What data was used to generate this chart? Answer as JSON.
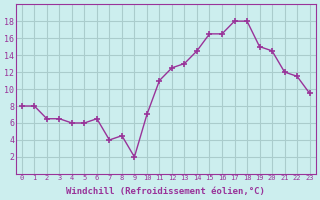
{
  "x": [
    0,
    1,
    2,
    3,
    4,
    5,
    6,
    7,
    8,
    9,
    10,
    11,
    12,
    13,
    14,
    15,
    16,
    17,
    18,
    19,
    20,
    21,
    22,
    23
  ],
  "y": [
    8,
    8,
    6.5,
    6.5,
    6,
    6,
    6.5,
    4,
    4.5,
    2,
    7,
    11,
    12.5,
    13,
    14.5,
    16.5,
    16.5,
    18,
    18,
    15,
    14.5,
    12,
    11.5,
    9.5
  ],
  "line_color": "#993399",
  "marker_color": "#993399",
  "bg_color": "#cceeee",
  "grid_color": "#aacccc",
  "xlabel": "Windchill (Refroidissement éolien,°C)",
  "xlabel_color": "#993399",
  "tick_color": "#993399",
  "ylim": [
    0,
    20
  ],
  "xlim_min": -0.5,
  "xlim_max": 23.5,
  "yticks": [
    2,
    4,
    6,
    8,
    10,
    12,
    14,
    16,
    18
  ],
  "xtick_labels": [
    "0",
    "1",
    "2",
    "3",
    "4",
    "5",
    "6",
    "7",
    "8",
    "9",
    "10",
    "11",
    "12",
    "13",
    "14",
    "15",
    "16",
    "17",
    "18",
    "19",
    "20",
    "21",
    "22",
    "23"
  ]
}
